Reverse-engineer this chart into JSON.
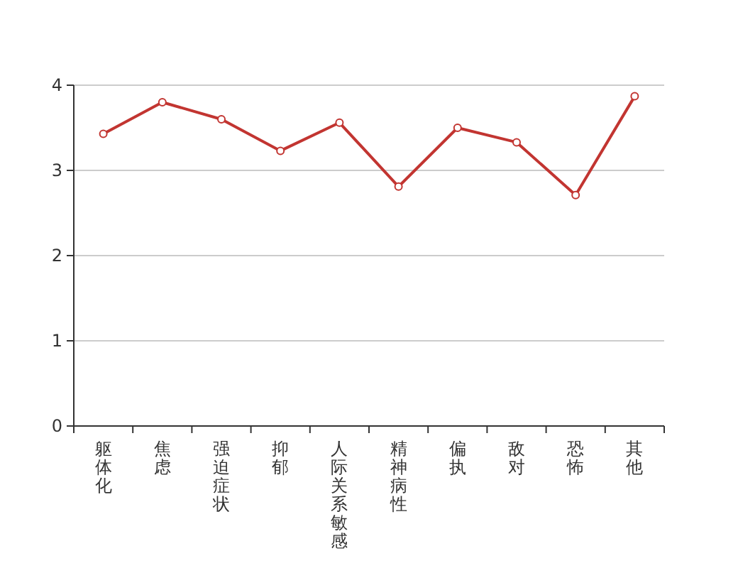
{
  "chart_data": {
    "type": "line",
    "categories": [
      "躯体化",
      "焦虑",
      "强迫症状",
      "抑郁",
      "人际关系敏感",
      "精神病性",
      "偏执",
      "敌对",
      "恐怖",
      "其他"
    ],
    "series": [
      {
        "color": "#c23531",
        "values": [
          3.43,
          3.8,
          3.6,
          3.23,
          3.56,
          2.81,
          3.5,
          3.33,
          2.71,
          3.87
        ]
      }
    ],
    "ylim": [
      0,
      4
    ],
    "yticks": [
      0,
      1,
      2,
      3,
      4
    ],
    "grid": "y",
    "marker": "circle",
    "line_style": "solid"
  }
}
